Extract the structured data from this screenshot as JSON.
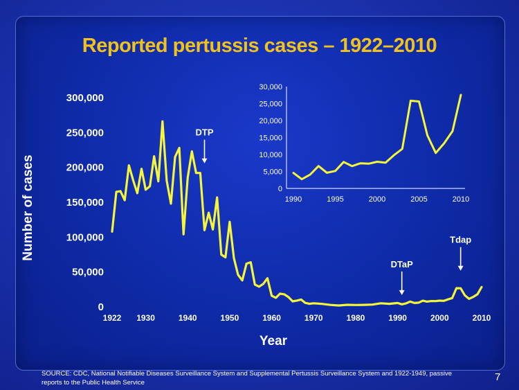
{
  "title": "Reported pertussis cases – 1922–2010",
  "source": "SOURCE: CDC, National Notifiable Diseases Surveillance System and Supplemental Pertussis Surveillance System and 1922-1949, passive reports to the Public Health Service",
  "page_number": "7",
  "colors": {
    "line": "#f5f53a",
    "title": "#f2c21c",
    "text": "#ffffff"
  },
  "chart_data": [
    {
      "type": "line",
      "xlabel": "Year",
      "ylabel": "Number of cases",
      "xlim": [
        1922,
        2010
      ],
      "ylim": [
        0,
        300000
      ],
      "x_ticks": [
        1922,
        1930,
        1940,
        1950,
        1960,
        1970,
        1980,
        1990,
        2000,
        2010
      ],
      "y_ticks": [
        0,
        50000,
        100000,
        150000,
        200000,
        250000,
        300000
      ],
      "y_tick_labels": [
        "0",
        "50,000",
        "100,000",
        "150,000",
        "200,000",
        "250,000",
        "300,000"
      ],
      "annotations": [
        {
          "text": "DTP",
          "year": 1944,
          "value": 195000
        },
        {
          "text": "DTaP",
          "year": 1991,
          "value": 14000
        },
        {
          "text": "Tdap",
          "year": 2005,
          "value": 45000
        }
      ],
      "series": [
        {
          "x": [
            1922,
            1923,
            1924,
            1925,
            1926,
            1927,
            1928,
            1929,
            1930,
            1931,
            1932,
            1933,
            1934,
            1935,
            1936,
            1937,
            1938,
            1939,
            1940,
            1941,
            1942,
            1943,
            1944,
            1945,
            1946,
            1947,
            1948,
            1949,
            1950,
            1951,
            1952,
            1953,
            1954,
            1955,
            1956,
            1957,
            1958,
            1959,
            1960,
            1961,
            1962,
            1963,
            1964,
            1965,
            1966,
            1967,
            1968,
            1969,
            1970,
            1972,
            1974,
            1976,
            1978,
            1980,
            1982,
            1984,
            1986,
            1988,
            1990,
            1991,
            1992,
            1993,
            1994,
            1995,
            1996,
            1997,
            1998,
            1999,
            2000,
            2001,
            2002,
            2003,
            2004,
            2005,
            2006,
            2007,
            2008,
            2009,
            2010
          ],
          "values": [
            107000,
            164000,
            165000,
            152000,
            202000,
            181000,
            162000,
            197000,
            167000,
            172000,
            215000,
            179000,
            265000,
            180000,
            147000,
            214000,
            227000,
            103000,
            184000,
            222000,
            191000,
            191000,
            109000,
            134000,
            110000,
            156000,
            74000,
            70000,
            121000,
            69000,
            45000,
            37000,
            61000,
            63000,
            31000,
            28000,
            32000,
            40000,
            15000,
            12000,
            18000,
            17000,
            13000,
            7000,
            8000,
            9500,
            4800,
            3400,
            4200,
            3300,
            1800,
            1000,
            2000,
            1700,
            1900,
            2300,
            4200,
            3400,
            4600,
            2700,
            4100,
            6600,
            4600,
            5100,
            7800,
            6600,
            7400,
            7300,
            7900,
            7600,
            9800,
            11600,
            25800,
            25600,
            15600,
            10500,
            13300,
            17000,
            27550
          ]
        }
      ]
    },
    {
      "type": "line",
      "inset": true,
      "xlim": [
        1990,
        2010
      ],
      "ylim": [
        0,
        30000
      ],
      "x_ticks": [
        1990,
        1995,
        2000,
        2005,
        2010
      ],
      "y_ticks": [
        0,
        5000,
        10000,
        15000,
        20000,
        25000,
        30000
      ],
      "y_tick_labels": [
        "0",
        "5,000",
        "10,000",
        "15,000",
        "20,000",
        "25,000",
        "30,000"
      ],
      "series": [
        {
          "x": [
            1990,
            1991,
            1992,
            1993,
            1994,
            1995,
            1996,
            1997,
            1998,
            1999,
            2000,
            2001,
            2002,
            2003,
            2004,
            2005,
            2006,
            2007,
            2008,
            2009,
            2010
          ],
          "values": [
            4570,
            2719,
            4083,
            6586,
            4617,
            5137,
            7796,
            6564,
            7405,
            7288,
            7867,
            7580,
            9771,
            11647,
            25827,
            25616,
            15632,
            10454,
            13278,
            16858,
            27550
          ]
        }
      ]
    }
  ]
}
